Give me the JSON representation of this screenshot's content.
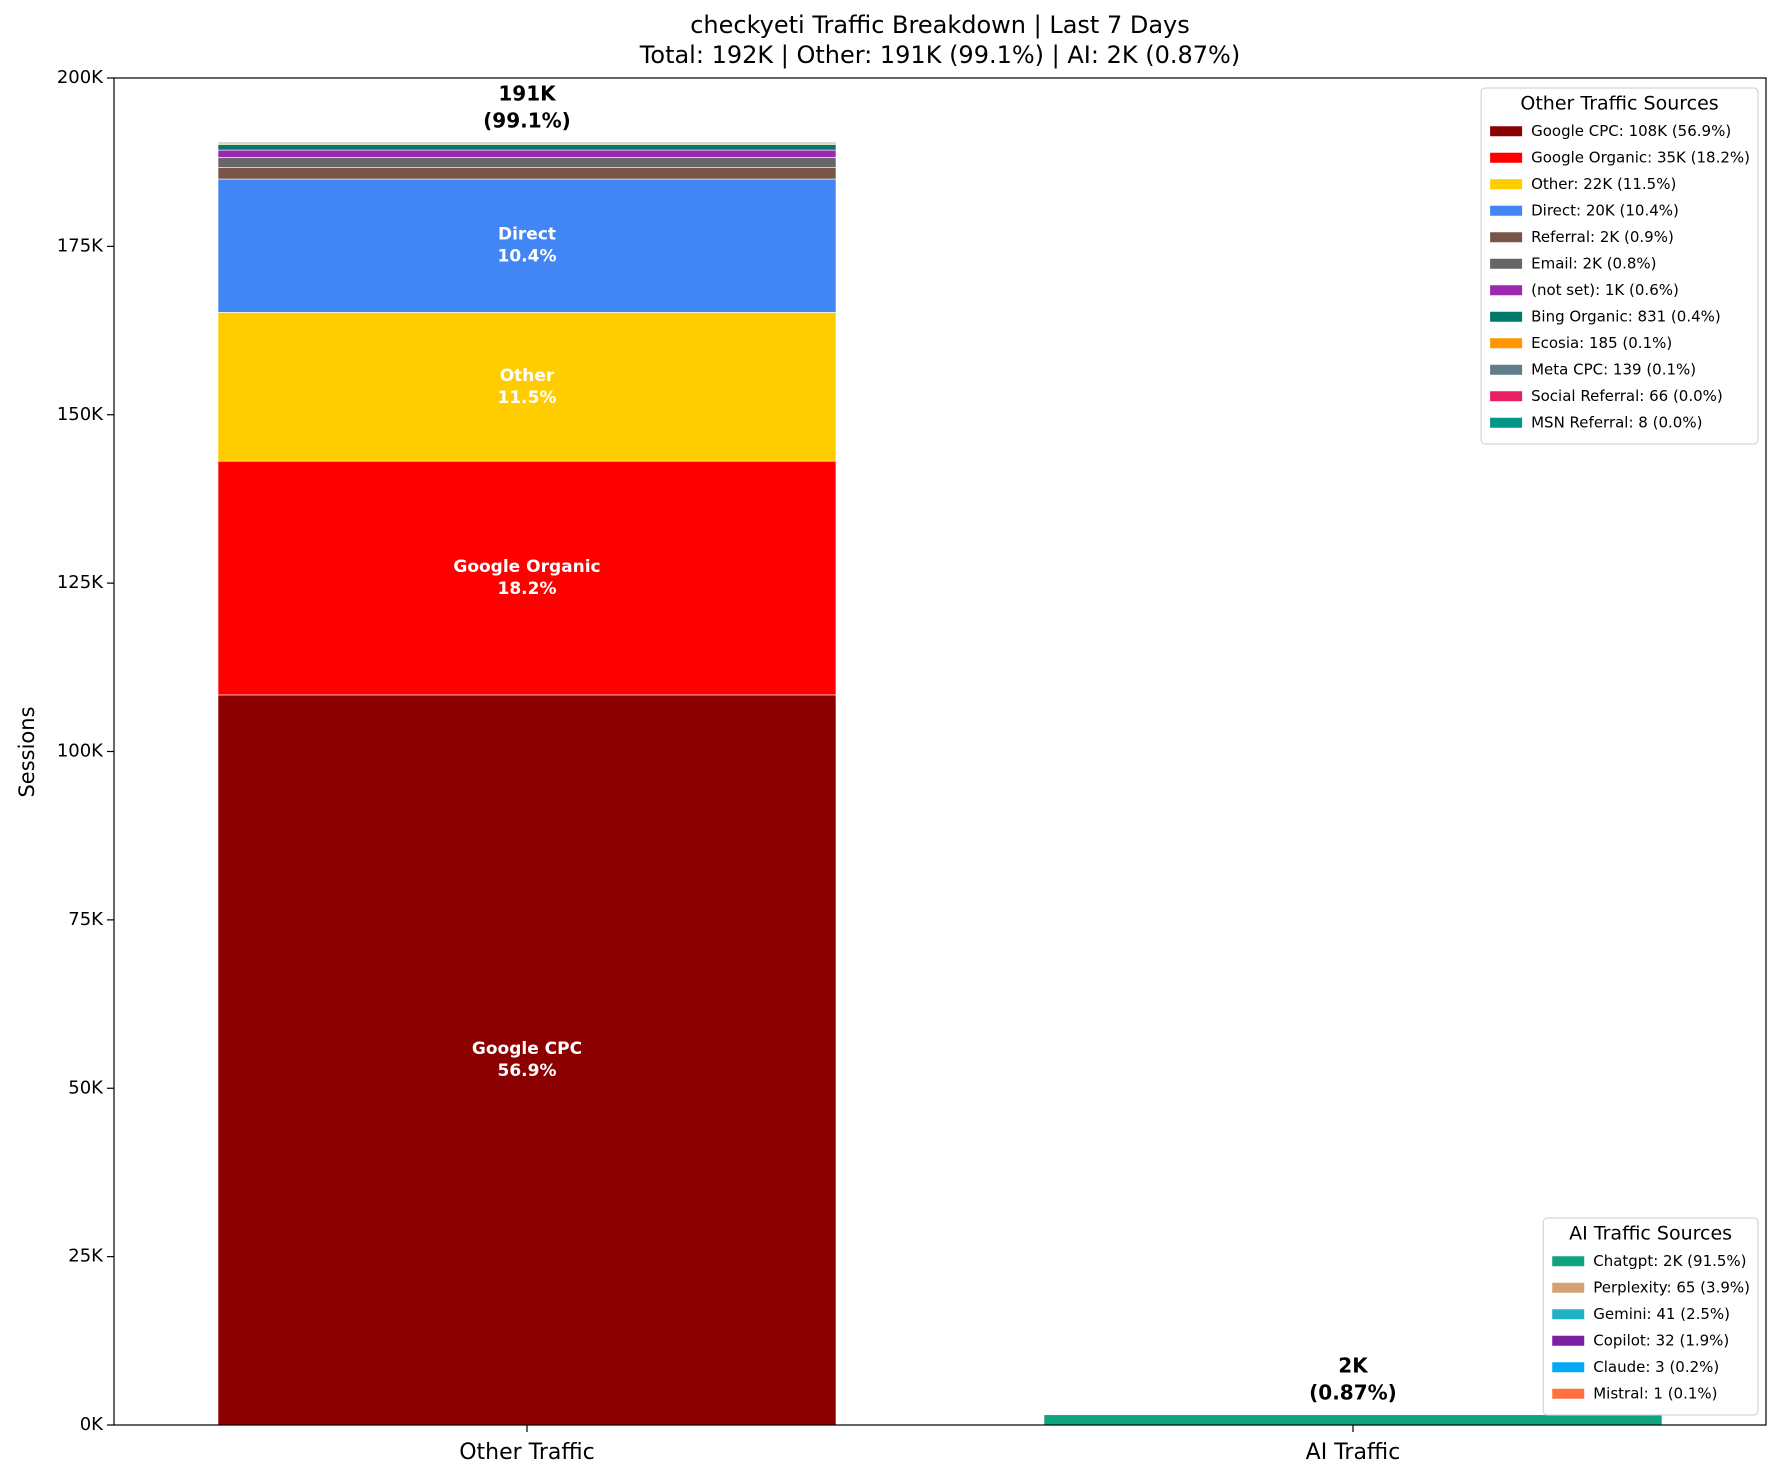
{
  "chart_data": {
    "type": "stacked_bar",
    "title": [
      "checkyeti Traffic Breakdown | Last 7 Days",
      "Total: 192K | Other: 191K (99.1%) | AI: 2K (0.87%)"
    ],
    "ylabel": "Sessions",
    "categories": [
      "Other Traffic",
      "AI Traffic"
    ],
    "stack_labels": [
      [
        "191K",
        "(99.1%)"
      ],
      [
        "2K",
        "(0.87%)"
      ]
    ],
    "ylim": [
      0,
      200000
    ],
    "yticks": [
      {
        "value": 0,
        "label": "0K"
      },
      {
        "value": 25000,
        "label": "25K"
      },
      {
        "value": 50000,
        "label": "50K"
      },
      {
        "value": 75000,
        "label": "75K"
      },
      {
        "value": 100000,
        "label": "100K"
      },
      {
        "value": 125000,
        "label": "125K"
      },
      {
        "value": 150000,
        "label": "150K"
      },
      {
        "value": 175000,
        "label": "175K"
      },
      {
        "value": 200000,
        "label": "200K"
      }
    ],
    "grid": false,
    "legends": [
      {
        "title": "Other Traffic Sources",
        "loc": "upper right"
      },
      {
        "title": "AI Traffic Sources",
        "loc": "lower right"
      }
    ],
    "series": [
      {
        "name": "Google CPC",
        "legend_label": "Google CPC: 108K (56.9%)",
        "percent_label": "56.9%",
        "legend": 0,
        "color": "#8b0000",
        "values": [
          108400,
          null
        ]
      },
      {
        "name": "Google Organic",
        "legend_label": "Google Organic: 35K (18.2%)",
        "percent_label": "18.2%",
        "legend": 0,
        "color": "#ff0000",
        "values": [
          34700,
          null
        ]
      },
      {
        "name": "Other",
        "legend_label": "Other: 22K (11.5%)",
        "percent_label": "11.5%",
        "legend": 0,
        "color": "#ffcc00",
        "values": [
          22100,
          null
        ]
      },
      {
        "name": "Direct",
        "legend_label": "Direct: 20K (10.4%)",
        "percent_label": "10.4%",
        "legend": 0,
        "color": "#4285f4",
        "values": [
          19800,
          null
        ]
      },
      {
        "legend_label": "Referral: 2K (0.9%)",
        "legend": 0,
        "color": "#795548",
        "values": [
          1700,
          null
        ]
      },
      {
        "legend_label": "Email: 2K (0.8%)",
        "legend": 0,
        "color": "#666666",
        "values": [
          1500,
          null
        ]
      },
      {
        "legend_label": "(not set): 1K (0.6%)",
        "legend": 0,
        "color": "#9c27b0",
        "values": [
          1100,
          null
        ]
      },
      {
        "legend_label": "Bing Organic: 831 (0.4%)",
        "legend": 0,
        "color": "#00796b",
        "values": [
          831,
          null
        ]
      },
      {
        "legend_label": "Ecosia: 185 (0.1%)",
        "legend": 0,
        "color": "#ff9800",
        "values": [
          185,
          null
        ]
      },
      {
        "legend_label": "Meta CPC: 139 (0.1%)",
        "legend": 0,
        "color": "#607d8b",
        "values": [
          139,
          null
        ]
      },
      {
        "legend_label": "Social Referral: 66 (0.0%)",
        "legend": 0,
        "color": "#e91e63",
        "values": [
          66,
          null
        ]
      },
      {
        "legend_label": "MSN Referral: 8 (0.0%)",
        "legend": 0,
        "color": "#009688",
        "values": [
          8,
          null
        ]
      },
      {
        "legend_label": "Chatgpt: 2K (91.5%)",
        "legend": 1,
        "color": "#10a37f",
        "values": [
          null,
          1525
        ]
      },
      {
        "legend_label": "Perplexity: 65 (3.9%)",
        "legend": 1,
        "color": "#d4a373",
        "values": [
          null,
          65
        ]
      },
      {
        "legend_label": "Gemini: 41 (2.5%)",
        "legend": 1,
        "color": "#20b2c4",
        "values": [
          null,
          41
        ]
      },
      {
        "legend_label": "Copilot: 32 (1.9%)",
        "legend": 1,
        "color": "#7b1fa2",
        "values": [
          null,
          32
        ]
      },
      {
        "legend_label": "Claude: 3 (0.2%)",
        "legend": 1,
        "color": "#03a9f4",
        "values": [
          null,
          3
        ]
      },
      {
        "legend_label": "Mistral: 1 (0.1%)",
        "legend": 1,
        "color": "#ff7043",
        "values": [
          null,
          1
        ]
      }
    ]
  }
}
